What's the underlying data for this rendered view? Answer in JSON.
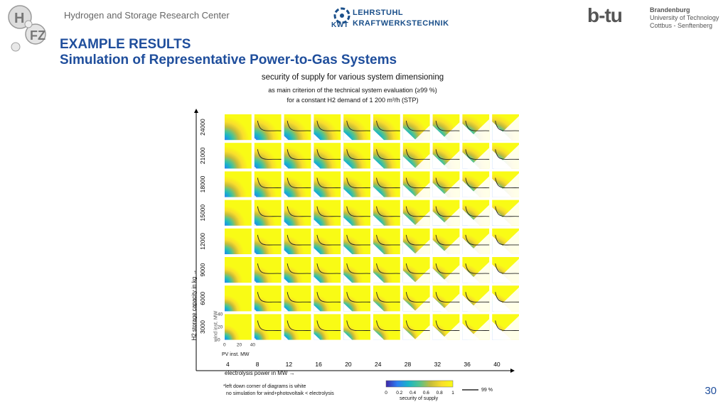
{
  "header": {
    "org": "Hydrogen and Storage Research Center",
    "logo_h2fz": "H2FZ",
    "kwt_line1": "LEHRSTUHL",
    "kwt_line2": "KRAFTWERKSTECHNIK",
    "kwt_abbr": "KWT",
    "btu_mark": "b-tu",
    "btu_line1": "Brandenburg",
    "btu_line2": "University of Technology",
    "btu_line3": "Cottbus - Senftenberg"
  },
  "title": {
    "line1": "EXAMPLE RESULTS",
    "line2": "Simulation of Representative Power-to-Gas Systems"
  },
  "chart_data": {
    "type": "heatmap",
    "title": "security of supply for various system dimensioning",
    "subtitle1": "as main criterion of the technical system evaluation (≥99 %)",
    "subtitle2": "for a constant H2 demand of 1 200 m³/h (STP)",
    "xlabel": "electrolysis power in MW →",
    "ylabel": "H2 storage capacity in kg →",
    "x_categories": [
      "4",
      "8",
      "12",
      "16",
      "20",
      "24",
      "28",
      "32",
      "36",
      "40"
    ],
    "y_categories": [
      "3000",
      "6000",
      "9000",
      "12000",
      "15000",
      "18000",
      "21000",
      "24000"
    ],
    "inner_xlabel": "PV inst. MW",
    "inner_ylabel": "wind inst. MW",
    "inner_x_ticks": [
      "0",
      "20",
      "40"
    ],
    "inner_y_ticks": [
      "0",
      "20",
      "40"
    ],
    "colorbar_label": "security of supply",
    "colorbar_ticks": [
      "0",
      "0.2",
      "0.4",
      "0.6",
      "0.8",
      "1"
    ],
    "contour_label": "99 %",
    "colormap": [
      "#3e26a8",
      "#2e7df2",
      "#18b4c8",
      "#53c38e",
      "#c5bc3a",
      "#f9de2b",
      "#f9fb15"
    ],
    "note_line1": "*left down corner of diagrams is white",
    "note_line2": "no simulation for wind+photovoltaik < electrolysis"
  },
  "page_number": "30"
}
